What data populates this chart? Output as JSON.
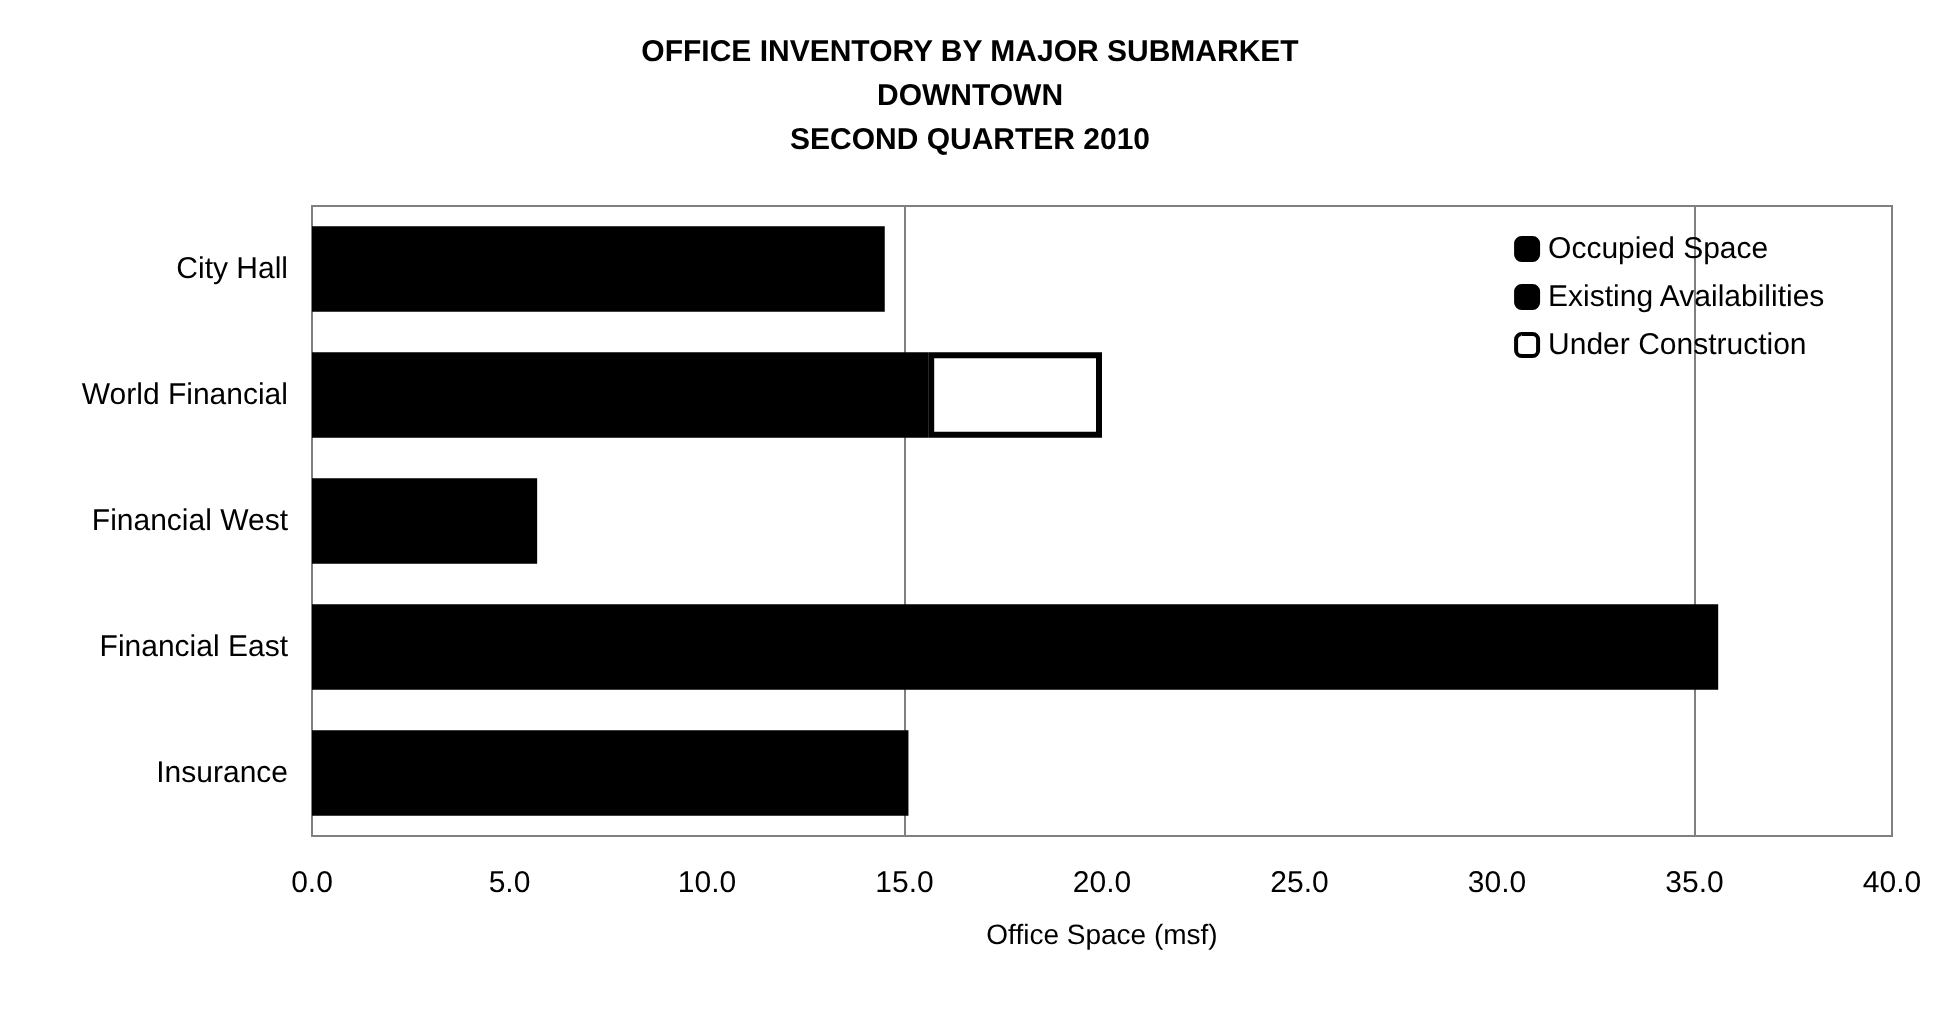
{
  "chart_data": {
    "type": "bar",
    "orientation": "horizontal",
    "stacked": true,
    "title": "OFFICE INVENTORY BY MAJOR SUBMARKET\nDOWNTOWN\nSECOND QUARTER 2010",
    "xlabel": "Office Space (msf)",
    "categories": [
      "City Hall",
      "World Financial",
      "Financial West",
      "Financial East",
      "Insurance"
    ],
    "series": [
      {
        "name": "Occupied Space",
        "color": "#000000",
        "values": [
          14.5,
          15.6,
          5.7,
          35.6,
          15.1
        ]
      },
      {
        "name": "Existing Availabilities",
        "color": "#000000",
        "values": [
          null,
          null,
          null,
          null,
          null
        ]
      },
      {
        "name": "Under Construction",
        "color": "#ffffff",
        "values": [
          null,
          4.4,
          null,
          null,
          null
        ]
      }
    ],
    "xlim": [
      0,
      40
    ],
    "xticks": [
      {
        "value": 0,
        "label": "0.0"
      },
      {
        "value": 5,
        "label": "5.0"
      },
      {
        "value": 10,
        "label": "10.0"
      },
      {
        "value": 15,
        "label": "15.0"
      },
      {
        "value": 20,
        "label": "20.0"
      },
      {
        "value": 25,
        "label": "25.0"
      },
      {
        "value": 30,
        "label": "30.0"
      },
      {
        "value": 35,
        "label": "35.0"
      },
      {
        "value": 40,
        "label": "40.0"
      }
    ],
    "ref_lines": [
      {
        "axis": "x",
        "value": 15,
        "color": "#808080"
      },
      {
        "axis": "x",
        "value": 35,
        "color": "#808080"
      }
    ],
    "grid": false,
    "legend": "top right"
  }
}
